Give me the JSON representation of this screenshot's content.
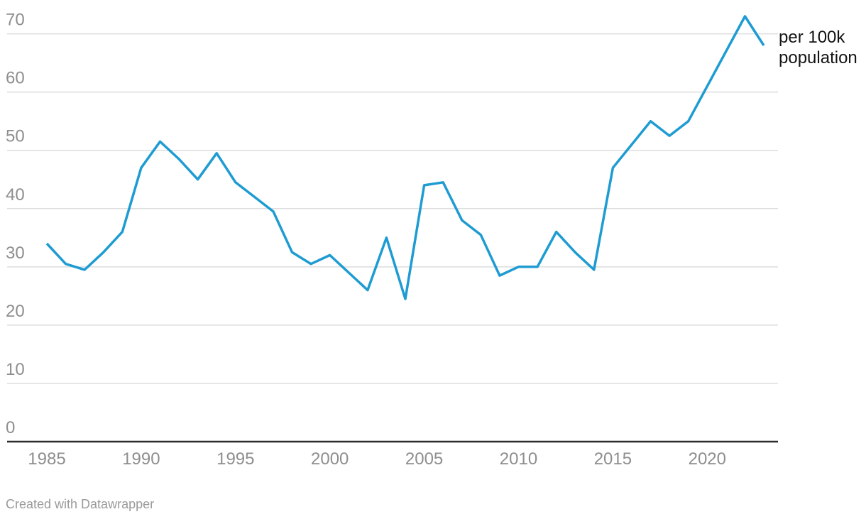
{
  "chart_data": {
    "type": "line",
    "title": "",
    "xlabel": "",
    "ylabel": "",
    "x": [
      1985,
      1986,
      1987,
      1988,
      1989,
      1990,
      1991,
      1992,
      1993,
      1994,
      1995,
      1996,
      1997,
      1998,
      1999,
      2000,
      2001,
      2002,
      2003,
      2004,
      2005,
      2006,
      2007,
      2008,
      2009,
      2010,
      2011,
      2012,
      2013,
      2014,
      2015,
      2016,
      2017,
      2018,
      2019,
      2020,
      2021,
      2022,
      2023
    ],
    "series": [
      {
        "name": "per 100k population",
        "values": [
          34,
          30.5,
          29.5,
          32.5,
          36,
          47,
          51.5,
          48.5,
          45,
          49.5,
          44.5,
          42,
          39.5,
          32.5,
          30.5,
          32,
          29,
          26,
          35,
          24.5,
          44,
          44.5,
          38,
          35.5,
          28.5,
          30,
          30,
          36,
          32.5,
          29.5,
          47,
          51,
          55,
          52.5,
          55,
          61,
          67,
          73,
          68
        ]
      }
    ],
    "x_ticks": [
      1985,
      1990,
      1995,
      2000,
      2005,
      2010,
      2015,
      2020
    ],
    "y_ticks": [
      0,
      10,
      20,
      30,
      40,
      50,
      60,
      70
    ],
    "ylim": [
      0,
      73
    ],
    "xlim": [
      1985,
      2023
    ],
    "grid": true,
    "legend_position": "direct label at right end of line",
    "series_label": "per 100k population",
    "colors": {
      "line": "#1E9CD2",
      "gridline": "#dddddd",
      "axis_line": "#2b2b2b",
      "tick_label": "#8e8e8e",
      "annotation": "#131313",
      "credit": "#9a9a9a"
    }
  },
  "footer": {
    "credit": "Created with Datawrapper"
  }
}
